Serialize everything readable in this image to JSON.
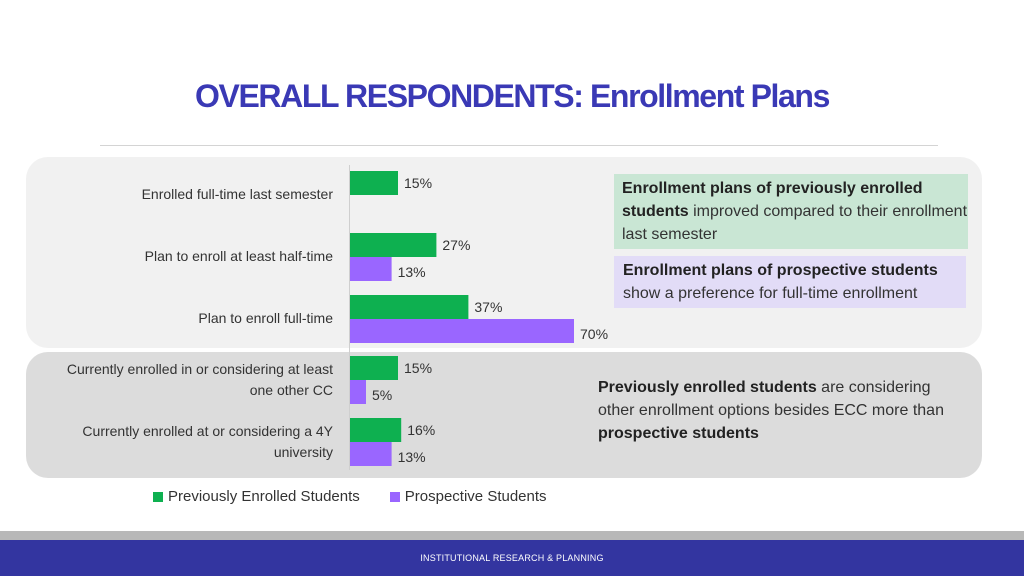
{
  "title": "OVERALL RESPONDENTS: Enrollment Plans",
  "chart_data": {
    "type": "bar",
    "orientation": "horizontal",
    "categories": [
      "Enrolled full-time last semester",
      "Plan to enroll at least half-time",
      "Plan to enroll full-time",
      "Currently enrolled in or considering at least one other CC",
      "Currently enrolled at or considering a 4Y university"
    ],
    "series": [
      {
        "name": "Previously Enrolled Students",
        "color": "#0eb050",
        "values": [
          15,
          27,
          37,
          15,
          16
        ],
        "labels": [
          "15%",
          "27%",
          "37%",
          "15%",
          "16%"
        ]
      },
      {
        "name": "Prospective Students",
        "color": "#9a66ff",
        "values": [
          null,
          13,
          70,
          5,
          13
        ],
        "labels": [
          "",
          "13%",
          "70%",
          "5%",
          "13%"
        ]
      }
    ],
    "unit": "%",
    "grid": false,
    "legend_position": "bottom"
  },
  "category_labels": {
    "c0": [
      "Enrolled full-time last semester"
    ],
    "c1": [
      "Plan to enroll at least half-time"
    ],
    "c2": [
      "Plan to enroll full-time"
    ],
    "c3": [
      "Currently enrolled in or considering at least",
      "one other CC"
    ],
    "c4": [
      "Currently enrolled at or considering a 4Y",
      "university"
    ]
  },
  "callouts": {
    "c1": {
      "bold": "Enrollment plans of previously enrolled students",
      "rest": " improved compared to their enrollment last semester"
    },
    "c2": {
      "bold": "Enrollment plans of prospective students",
      "rest": " show a preference for full-time enrollment"
    },
    "c3": {
      "bold1": "Previously enrolled students",
      "mid": " are considering other enrollment options besides ECC more than ",
      "bold2": "prospective students"
    }
  },
  "legend": {
    "previously": "Previously Enrolled Students",
    "prospective": "Prospective Students"
  },
  "footer": "INSTITUTIONAL RESEARCH & PLANNING"
}
